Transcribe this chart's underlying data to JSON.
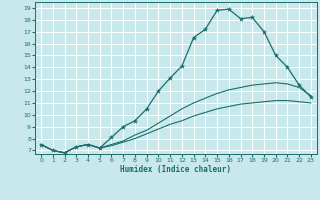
{
  "xlabel": "Humidex (Indice chaleur)",
  "bg_color": "#c8e8ec",
  "grid_color": "#ffffff",
  "line_color": "#1a6e6a",
  "xlim": [
    -0.5,
    23.5
  ],
  "ylim": [
    6.7,
    19.5
  ],
  "yticks": [
    7,
    8,
    9,
    10,
    11,
    12,
    13,
    14,
    15,
    16,
    17,
    18,
    19
  ],
  "xticks": [
    0,
    1,
    2,
    3,
    4,
    5,
    6,
    7,
    8,
    9,
    10,
    11,
    12,
    13,
    14,
    15,
    16,
    17,
    18,
    19,
    20,
    21,
    22,
    23
  ],
  "main_x": [
    0,
    1,
    2,
    3,
    4,
    5,
    6,
    7,
    8,
    9,
    10,
    11,
    12,
    13,
    14,
    15,
    16,
    17,
    18,
    19,
    20,
    21,
    22,
    23
  ],
  "main_y": [
    7.5,
    7.0,
    6.8,
    7.3,
    7.5,
    7.2,
    8.1,
    9.0,
    9.5,
    10.5,
    12.0,
    13.1,
    14.1,
    16.5,
    17.2,
    18.8,
    18.9,
    18.1,
    18.2,
    17.0,
    15.0,
    14.0,
    12.5,
    11.5
  ],
  "mid_x": [
    0,
    1,
    2,
    3,
    4,
    5,
    6,
    7,
    8,
    9,
    10,
    11,
    12,
    13,
    14,
    15,
    16,
    17,
    18,
    19,
    20,
    21,
    22,
    23
  ],
  "mid_y": [
    7.5,
    7.0,
    6.8,
    7.3,
    7.5,
    7.2,
    7.5,
    7.8,
    8.3,
    8.7,
    9.3,
    9.9,
    10.5,
    11.0,
    11.4,
    11.8,
    12.1,
    12.3,
    12.5,
    12.6,
    12.7,
    12.6,
    12.3,
    11.6
  ],
  "low_x": [
    0,
    1,
    2,
    3,
    4,
    5,
    6,
    7,
    8,
    9,
    10,
    11,
    12,
    13,
    14,
    15,
    16,
    17,
    18,
    19,
    20,
    21,
    22,
    23
  ],
  "low_y": [
    7.5,
    7.0,
    6.8,
    7.3,
    7.5,
    7.2,
    7.4,
    7.7,
    8.0,
    8.4,
    8.8,
    9.2,
    9.5,
    9.9,
    10.2,
    10.5,
    10.7,
    10.9,
    11.0,
    11.1,
    11.2,
    11.2,
    11.1,
    11.0
  ]
}
